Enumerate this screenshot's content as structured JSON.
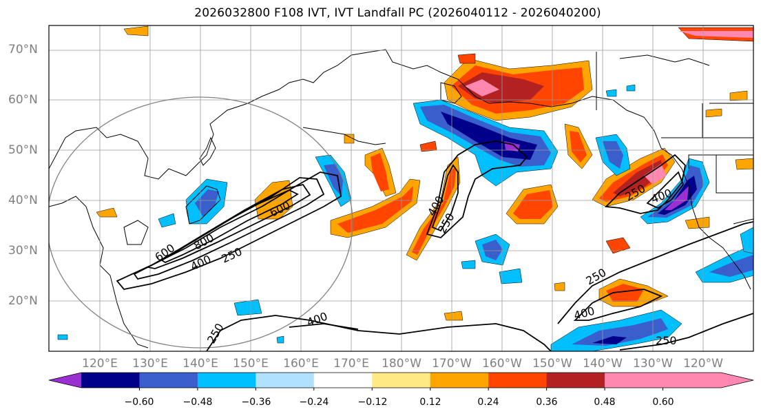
{
  "title": "2026032800 F108 IVT, IVT Landfall PC (2026040112 - 2026040200)",
  "lat_labels": [
    "70°N",
    "60°N",
    "50°N",
    "40°N",
    "30°N",
    "20°N"
  ],
  "lon_labels": [
    "120°E",
    "130°E",
    "140°E",
    "150°E",
    "160°E",
    "170°E",
    "180°W",
    "170°W",
    "160°W",
    "150°W",
    "140°W",
    "130°W",
    "120°W"
  ],
  "contour_labels": {
    "c600_west": "600",
    "c800_west": "800",
    "c400_west": "400",
    "c250_west": "250",
    "c600_jet": "600",
    "c400_mid": "400",
    "c250_mid": "250",
    "c250_coast": "250",
    "c400_coast": "400",
    "c250_south": "250",
    "c400_south": "400",
    "c250_se": "250",
    "c250_sw": "250",
    "c400_sw": "400"
  },
  "colorbar": {
    "ticks": [
      "−0.60",
      "−0.48",
      "−0.36",
      "−0.24",
      "−0.12",
      "0.12",
      "0.24",
      "0.36",
      "0.48",
      "0.60"
    ],
    "colors": [
      "#9b30d0",
      "#00008b",
      "#3a5fcd",
      "#00bfff",
      "#b0e2ff",
      "#ffffff",
      "#ffe985",
      "#ffa500",
      "#ff4500",
      "#b22222",
      "#ff88b0",
      "#ff88b0"
    ]
  }
}
